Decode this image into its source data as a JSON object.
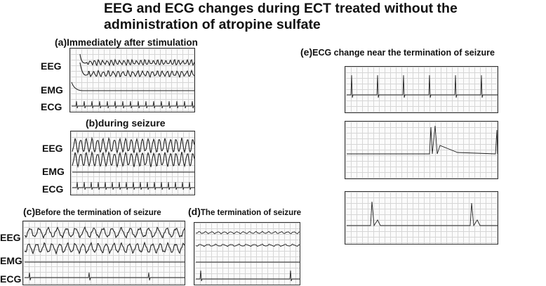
{
  "title_line1": "EEG and ECG changes during ECT treated without the",
  "title_line2": "administration of atropine sulfate",
  "panels": {
    "a": {
      "letter": "(a)",
      "caption": "Immediately after stimulation"
    },
    "b": {
      "letter": "(b)",
      "caption": "during seizure"
    },
    "c": {
      "letter": "(c)",
      "caption": "Before the termination of seizure"
    },
    "d": {
      "letter": "(d)",
      "caption": "The termination of seizure"
    },
    "e": {
      "letter": "(e)",
      "caption": "ECG  change  near the termination of seizure"
    }
  },
  "labels": {
    "eeg": "EEG",
    "emg": "EMG",
    "ecg": "ECG"
  }
}
